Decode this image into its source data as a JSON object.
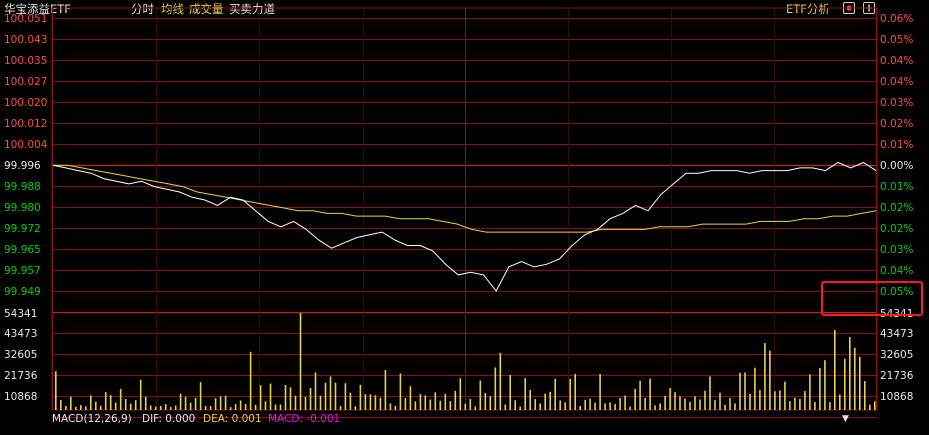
{
  "header": {
    "title": "华宝添益ETF",
    "tabs": [
      {
        "label": "分时",
        "color": "#e6e6e6"
      },
      {
        "label": "均线",
        "color": "#e6d34b"
      },
      {
        "label": "成交量",
        "color": "#e6d34b"
      },
      {
        "label": "买卖力道",
        "color": "#e6e6e6"
      }
    ],
    "etf_analysis_label": "ETF分析"
  },
  "price_axis": {
    "left_labels": [
      "100.051",
      "100.043",
      "100.035",
      "100.027",
      "100.020",
      "100.012",
      "100.004",
      "99.996",
      "99.988",
      "99.980",
      "99.972",
      "99.965",
      "99.957",
      "99.949"
    ],
    "right_labels": [
      "0.06%",
      "0.05%",
      "0.04%",
      "0.04%",
      "0.03%",
      "0.02%",
      "0.01%",
      "0.00%",
      "0.01%",
      "0.02%",
      "0.02%",
      "0.03%",
      "0.04%",
      "0.05%"
    ],
    "prev_close": "99.996"
  },
  "volume_axis": {
    "left_labels": [
      "54341",
      "43473",
      "32605",
      "21736",
      "10868"
    ],
    "right_labels": [
      "54341",
      "43473",
      "32605",
      "21736",
      "10868"
    ]
  },
  "macd": {
    "name": "MACD(12,26,9)",
    "dif_label": "DIF: 0.000",
    "dea_label": "DEA: 0.001",
    "macd_label": "MACD: -0.001"
  },
  "colors": {
    "up": "#ff4a4a",
    "down": "#00d200",
    "price_line": "#ffffff",
    "avg_line": "#e6d34b",
    "grid": "#8c1010",
    "volume": "#e6d34b",
    "macd": "#ff00ff"
  },
  "chart_data": {
    "type": "line",
    "title": "华宝添益ETF",
    "ylim": [
      99.945,
      100.053
    ],
    "prev_close": 99.996,
    "price_series": [
      99.996,
      99.995,
      99.994,
      99.993,
      99.991,
      99.99,
      99.989,
      99.99,
      99.988,
      99.987,
      99.986,
      99.984,
      99.983,
      99.981,
      99.984,
      99.983,
      99.979,
      99.975,
      99.973,
      99.975,
      99.972,
      99.968,
      99.965,
      99.967,
      99.969,
      99.97,
      99.971,
      99.968,
      99.966,
      99.966,
      99.964,
      99.959,
      99.955,
      99.956,
      99.955,
      99.949,
      99.958,
      99.96,
      99.958,
      99.959,
      99.961,
      99.966,
      99.97,
      99.972,
      99.976,
      99.978,
      99.981,
      99.979,
      99.985,
      99.989,
      99.993,
      99.993,
      99.994,
      99.994,
      99.994,
      99.993,
      99.994,
      99.994,
      99.994,
      99.995,
      99.995,
      99.994,
      99.997,
      99.995,
      99.997,
      99.994
    ],
    "avg_series": [
      99.996,
      99.996,
      99.995,
      99.994,
      99.993,
      99.992,
      99.991,
      99.99,
      99.989,
      99.988,
      99.986,
      99.985,
      99.984,
      99.983,
      99.982,
      99.981,
      99.98,
      99.979,
      99.979,
      99.978,
      99.978,
      99.977,
      99.977,
      99.977,
      99.976,
      99.976,
      99.976,
      99.975,
      99.974,
      99.972,
      99.971,
      99.971,
      99.971,
      99.971,
      99.971,
      99.971,
      99.971,
      99.971,
      99.972,
      99.972,
      99.972,
      99.972,
      99.973,
      99.973,
      99.973,
      99.974,
      99.974,
      99.974,
      99.974,
      99.975,
      99.975,
      99.975,
      99.976,
      99.976,
      99.977,
      99.977,
      99.978,
      99.979
    ],
    "volume": [
      21736,
      5600,
      2300,
      7400,
      1800,
      2700,
      2100,
      8200,
      4700,
      2400,
      10000,
      8300,
      4200,
      11800,
      6100,
      3600,
      5500,
      17000,
      7400,
      2500,
      1900,
      2300,
      3300,
      1700,
      2500,
      9200,
      7400,
      4100,
      6800,
      15600,
      2300,
      2200,
      6600,
      7600,
      8000,
      1600,
      3300,
      5300,
      3300,
      32605,
      2900,
      13900,
      4900,
      14800,
      3100,
      3100,
      14000,
      12700,
      8000,
      54341,
      7400,
      12300,
      21000,
      8000,
      15300,
      18800,
      15300,
      2200,
      15000,
      9700,
      2100,
      14100,
      8900,
      8800,
      8300,
      6900,
      22400,
      3700,
      2300,
      20500,
      6700,
      13300,
      4900,
      8900,
      8200,
      5900,
      9900,
      5200,
      9000,
      5000,
      10700,
      17800,
      3500,
      6200,
      2000,
      16500,
      9500,
      7700,
      23800,
      32000,
      3100,
      19600,
      5500,
      1900,
      17800,
      11200,
      6100,
      3700,
      9200,
      10200,
      17500,
      5300,
      4300,
      17500,
      20200,
      2300,
      5700,
      6400,
      4100,
      20200,
      3700,
      4300,
      3300,
      6700,
      8100,
      1900,
      11900,
      16300,
      6700,
      17600,
      2500,
      3700,
      7800,
      12300,
      10000,
      7700,
      6400,
      4500,
      7700,
      5900,
      10800,
      18800,
      5500,
      9700,
      2900,
      6700,
      3700,
      20900,
      21000,
      9000,
      23700,
      11100,
      37500,
      33300,
      10500,
      11000,
      15900,
      5000,
      6900,
      6200,
      10600,
      20000,
      4400,
      23500,
      27900,
      4400,
      44800,
      8700,
      28700,
      40900,
      34900,
      29800,
      16200,
      2900,
      4800
    ]
  }
}
